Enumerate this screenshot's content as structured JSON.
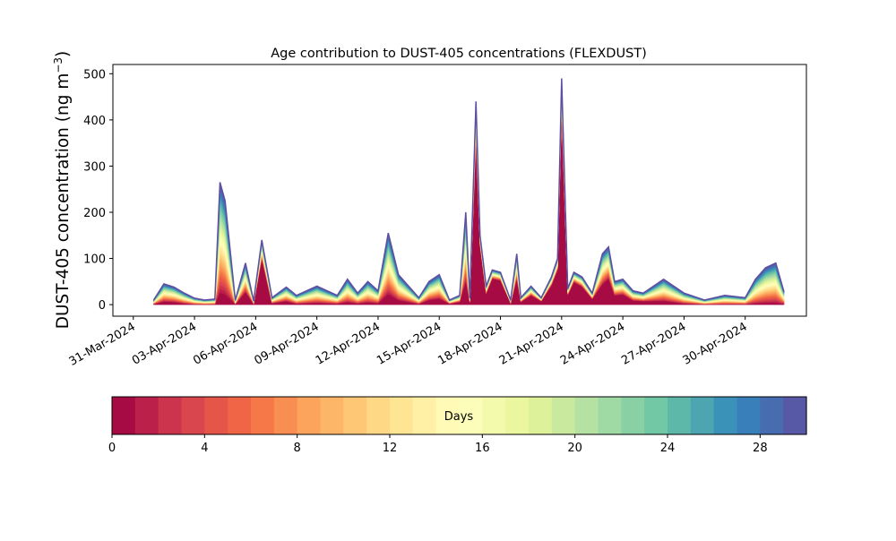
{
  "chart_data": {
    "type": "area",
    "title": "Age contribution to DUST-405 concentrations (FLEXDUST)",
    "ylabel": "DUST-405 concentration (ng m",
    "ylabel_superscript": "−3",
    "ylabel_close": ")",
    "ylim": [
      -25,
      520
    ],
    "yticks": [
      0,
      100,
      200,
      300,
      400,
      500
    ],
    "xlim": [
      "2024-03-30",
      "2024-05-03"
    ],
    "xticks": [
      "31-Mar-2024",
      "03-Apr-2024",
      "06-Apr-2024",
      "09-Apr-2024",
      "12-Apr-2024",
      "15-Apr-2024",
      "18-Apr-2024",
      "21-Apr-2024",
      "24-Apr-2024",
      "27-Apr-2024",
      "30-Apr-2024"
    ],
    "xtick_dates": [
      "2024-03-31",
      "2024-04-03",
      "2024-04-06",
      "2024-04-09",
      "2024-04-12",
      "2024-04-15",
      "2024-04-18",
      "2024-04-21",
      "2024-04-24",
      "2024-04-27",
      "2024-04-30"
    ],
    "grid": false,
    "stack_variable": "age (days)",
    "age_bins": 30,
    "colormap": "Spectral",
    "time_series": {
      "dates": [
        "2024-04-01",
        "2024-04-01.5",
        "2024-04-02",
        "2024-04-02.5",
        "2024-04-03",
        "2024-04-03.5",
        "2024-04-04",
        "2024-04-04.25",
        "2024-04-04.5",
        "2024-04-05",
        "2024-04-05.5",
        "2024-04-05.9",
        "2024-04-06.3",
        "2024-04-06.8",
        "2024-04-07.5",
        "2024-04-08",
        "2024-04-09",
        "2024-04-10",
        "2024-04-10.5",
        "2024-04-11",
        "2024-04-11.5",
        "2024-04-12",
        "2024-04-12.5",
        "2024-04-13",
        "2024-04-14",
        "2024-04-14.5",
        "2024-04-15",
        "2024-04-15.5",
        "2024-04-16",
        "2024-04-16.3",
        "2024-04-16.5",
        "2024-04-16.8",
        "2024-04-17",
        "2024-04-17.3",
        "2024-04-17.6",
        "2024-04-18",
        "2024-04-18.5",
        "2024-04-18.8",
        "2024-04-19",
        "2024-04-19.5",
        "2024-04-20",
        "2024-04-20.5",
        "2024-04-20.8",
        "2024-04-21",
        "2024-04-21.3",
        "2024-04-21.6",
        "2024-04-22",
        "2024-04-22.5",
        "2024-04-23",
        "2024-04-23.3",
        "2024-04-23.6",
        "2024-04-24",
        "2024-04-24.5",
        "2024-04-25",
        "2024-04-26",
        "2024-04-27",
        "2024-04-28",
        "2024-04-29",
        "2024-04-30",
        "2024-04-30.5",
        "2024-05-01",
        "2024-05-01.5",
        "2024-05-01.9"
      ],
      "total": [
        10,
        45,
        38,
        25,
        14,
        10,
        12,
        265,
        225,
        10,
        90,
        8,
        140,
        15,
        38,
        20,
        40,
        20,
        55,
        25,
        50,
        30,
        155,
        65,
        15,
        50,
        65,
        10,
        20,
        200,
        15,
        440,
        150,
        40,
        75,
        70,
        10,
        110,
        15,
        40,
        15,
        60,
        100,
        490,
        35,
        70,
        60,
        25,
        110,
        125,
        50,
        55,
        30,
        25,
        55,
        25,
        10,
        20,
        15,
        55,
        80,
        90,
        28
      ],
      "young_fraction": [
        0.1,
        0.15,
        0.15,
        0.1,
        0.05,
        0.05,
        0.05,
        0.1,
        0.1,
        0.1,
        0.3,
        0.2,
        0.7,
        0.2,
        0.2,
        0.1,
        0.1,
        0.1,
        0.1,
        0.1,
        0.1,
        0.1,
        0.15,
        0.15,
        0.1,
        0.2,
        0.2,
        0.2,
        0.3,
        0.25,
        0.3,
        0.82,
        0.85,
        0.6,
        0.75,
        0.75,
        0.3,
        0.5,
        0.4,
        0.5,
        0.5,
        0.7,
        0.75,
        0.85,
        0.6,
        0.7,
        0.65,
        0.5,
        0.4,
        0.45,
        0.4,
        0.4,
        0.3,
        0.3,
        0.15,
        0.1,
        0.05,
        0.05,
        0.05,
        0.05,
        0.05,
        0.05,
        0.05
      ]
    }
  },
  "colorbar": {
    "label": "Days",
    "ticks": [
      "0",
      "4",
      "8",
      "12",
      "16",
      "20",
      "24",
      "28"
    ],
    "range": [
      0,
      30
    ],
    "colormap": "Spectral"
  }
}
